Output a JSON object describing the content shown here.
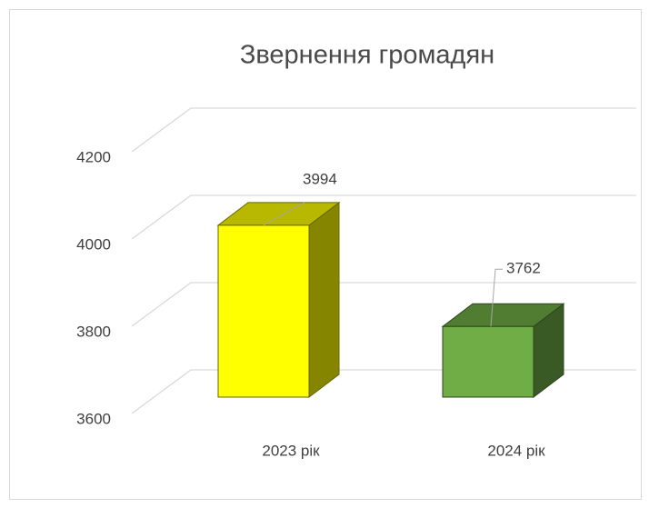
{
  "chart_data": {
    "type": "bar3d",
    "title": "Звернення громадян",
    "categories": [
      "2023 рік",
      "2024 рік"
    ],
    "values": [
      3994,
      3762
    ],
    "colors": [
      "#ffff00",
      "#70ad47"
    ],
    "ylim": [
      3600,
      4200
    ],
    "yticks": [
      3600,
      3800,
      4000,
      4200
    ],
    "grid": true
  }
}
